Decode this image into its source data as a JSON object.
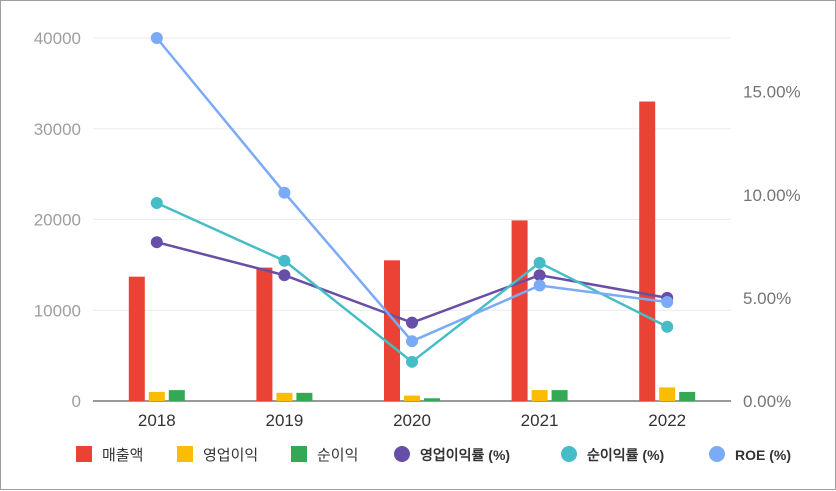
{
  "chart_data": {
    "type": "bar+line",
    "categories": [
      "2018",
      "2019",
      "2020",
      "2021",
      "2022"
    ],
    "bar_series": [
      {
        "name": "매출액",
        "color": "#ea4335",
        "values": [
          13700,
          14700,
          15500,
          19900,
          33000
        ]
      },
      {
        "name": "영업이익",
        "color": "#fbbc04",
        "values": [
          1000,
          900,
          600,
          1200,
          1500
        ]
      },
      {
        "name": "순이익",
        "color": "#34a853",
        "values": [
          1200,
          900,
          300,
          1200,
          1000
        ]
      }
    ],
    "line_series": [
      {
        "name": "영업이익률 (%)",
        "color": "#674ea7",
        "values": [
          7.7,
          6.1,
          3.8,
          6.1,
          5.0
        ]
      },
      {
        "name": "순이익률 (%)",
        "color": "#46bdc6",
        "values": [
          9.6,
          6.8,
          1.9,
          6.7,
          3.6
        ]
      },
      {
        "name": "ROE (%)",
        "color": "#7baaf7",
        "values": [
          17.6,
          10.1,
          2.9,
          5.6,
          4.8
        ]
      }
    ],
    "left_axis": {
      "ylim": [
        0,
        40000
      ],
      "ticks": [
        "0",
        "10000",
        "20000",
        "30000",
        "40000"
      ]
    },
    "right_axis": {
      "ylim": [
        0,
        17.6
      ],
      "ticks": [
        "0.00%",
        "5.00%",
        "10.00%",
        "15.00%"
      ]
    },
    "legend_position": "bottom",
    "grid": true
  }
}
